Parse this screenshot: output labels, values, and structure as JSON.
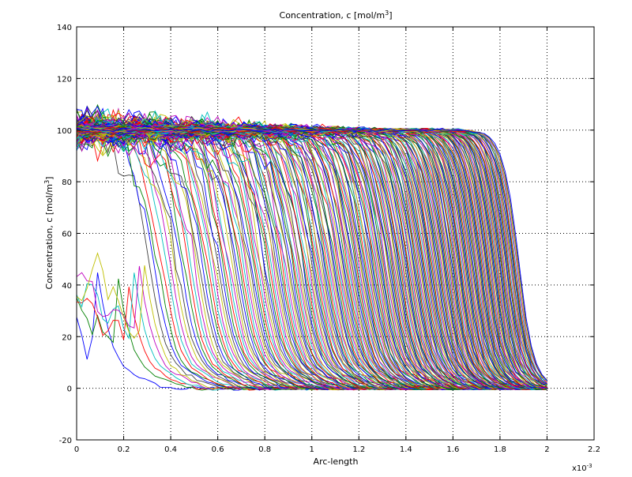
{
  "chart_data": {
    "type": "line",
    "title": "Concentration, c [mol/m",
    "title_sup": "3",
    "title_suffix": "]",
    "xlabel": "Arc-length",
    "ylabel": "Concentration, c [mol/m",
    "ylabel_sup": "3",
    "ylabel_suffix": "]",
    "x_multiplier": "x10",
    "x_multiplier_exp": "-3",
    "xlim": [
      0,
      2.2
    ],
    "ylim": [
      -20,
      140
    ],
    "x_ticks": [
      0,
      0.2,
      0.4,
      0.6,
      0.8,
      1,
      1.2,
      1.4,
      1.6,
      1.8,
      2,
      2.2
    ],
    "x_tick_labels": [
      "0",
      "0.2",
      "0.4",
      "0.6",
      "0.8",
      "1",
      "1.2",
      "1.4",
      "1.6",
      "1.8",
      "2",
      "2.2"
    ],
    "y_ticks": [
      -20,
      0,
      20,
      40,
      60,
      80,
      100,
      120,
      140
    ],
    "y_tick_labels": [
      "-20",
      "0",
      "20",
      "40",
      "60",
      "80",
      "100",
      "120",
      "140"
    ],
    "grid": true,
    "x_domain_max": 2.0,
    "series_count": 260,
    "front_positions_sample": [
      0.08,
      0.2,
      0.36,
      0.45,
      0.55,
      0.62,
      0.7,
      0.78,
      0.85,
      0.92,
      1.0,
      1.08,
      1.16,
      1.24,
      1.32,
      1.4,
      1.48,
      1.56,
      1.64,
      1.72,
      1.8,
      1.87
    ],
    "front_final_position": 1.88,
    "plateau_value": 100,
    "baseline_value": 0,
    "series_colors": [
      "#0000ff",
      "#008000",
      "#ff0000",
      "#00bfbf",
      "#bf00bf",
      "#bfbf00",
      "#404040"
    ]
  }
}
